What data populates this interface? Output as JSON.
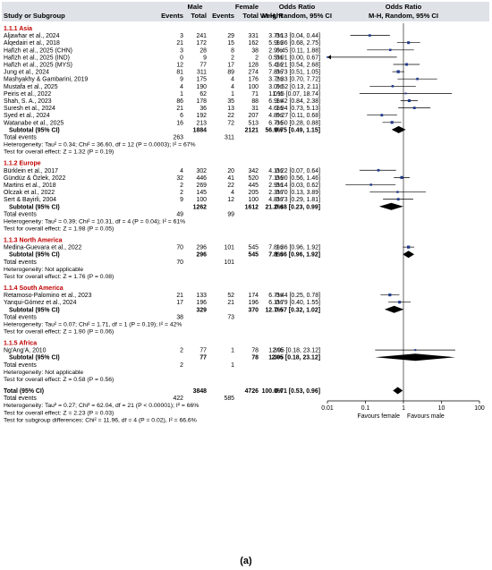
{
  "header": {
    "group_male": "Male",
    "group_female": "Female",
    "col_study": "Study or Subgroup",
    "col_events": "Events",
    "col_total": "Total",
    "col_weight": "Weight",
    "col_or_text": "Odds Ratio",
    "col_or_text_sub": "M-H, Random, 95% CI",
    "col_or_plot": "Odds Ratio",
    "col_or_plot_sub": "M-H, Random, 95% CI"
  },
  "axis": {
    "ticks": [
      "0.01",
      "0.1",
      "1",
      "10",
      "100"
    ],
    "favours_left": "Favours female",
    "favours_right": "Favours male"
  },
  "caption": "(a)",
  "chart_data": {
    "type": "forest",
    "xscale": "log",
    "xlim": [
      0.01,
      100
    ],
    "null_line": 1,
    "subgroups": [
      {
        "title": "1.1.1 Asia",
        "studies": [
          {
            "name": "Aljawhar et al., 2024",
            "me": "3",
            "mt": "241",
            "fe": "29",
            "ft": "331",
            "w": "3.7%",
            "ci": "0.13 [0.04, 0.44]",
            "or": 0.13,
            "lo": 0.04,
            "hi": 0.44,
            "wt": 3.7
          },
          {
            "name": "Alqedairi et al., 2018",
            "me": "21",
            "mt": "172",
            "fe": "15",
            "ft": "162",
            "w": "5.9%",
            "ci": "1.36 [0.68, 2.75]",
            "or": 1.36,
            "lo": 0.68,
            "hi": 2.75,
            "wt": 5.9
          },
          {
            "name": "Hafizh et al., 2025 (CHN)",
            "me": "3",
            "mt": "28",
            "fe": "8",
            "ft": "38",
            "w": "2.9%",
            "ci": "0.45 [0.11, 1.88]",
            "or": 0.45,
            "lo": 0.11,
            "hi": 1.88,
            "wt": 2.9
          },
          {
            "name": "Hafizh et al., 2025 (IND)",
            "me": "0",
            "mt": "9",
            "fe": "2",
            "ft": "2",
            "w": "0.5%",
            "ci": "0.01 [0.00, 0.67]",
            "or": 0.01,
            "lo": 0.001,
            "hi": 0.67,
            "wt": 0.5,
            "arrow_left": true
          },
          {
            "name": "Hafizh et al., 2025 (MYS)",
            "me": "12",
            "mt": "77",
            "fe": "17",
            "ft": "128",
            "w": "5.4%",
            "ci": "1.21 [0.54, 2.68]",
            "or": 1.21,
            "lo": 0.54,
            "hi": 2.68,
            "wt": 5.4
          },
          {
            "name": "Jung et al., 2024",
            "me": "81",
            "mt": "311",
            "fe": "89",
            "ft": "274",
            "w": "7.8%",
            "ci": "0.73 [0.51, 1.05]",
            "or": 0.73,
            "lo": 0.51,
            "hi": 1.05,
            "wt": 7.8
          },
          {
            "name": "Mashyakhy & Gambarini, 2019",
            "me": "9",
            "mt": "175",
            "fe": "4",
            "ft": "176",
            "w": "3.7%",
            "ci": "2.33 [0.70, 7.72]",
            "or": 2.33,
            "lo": 0.7,
            "hi": 7.72,
            "wt": 3.7
          },
          {
            "name": "Mustafa et al., 2025",
            "me": "4",
            "mt": "190",
            "fe": "4",
            "ft": "100",
            "w": "3.0%",
            "ci": "0.52 [0.13, 2.11]",
            "or": 0.52,
            "lo": 0.13,
            "hi": 2.11,
            "wt": 3.0
          },
          {
            "name": "Peiris et al., 2022",
            "me": "1",
            "mt": "62",
            "fe": "1",
            "ft": "71",
            "w": "1.0%",
            "ci": "1.15 [0.07, 18.74]",
            "or": 1.15,
            "lo": 0.07,
            "hi": 18.74,
            "wt": 1.0
          },
          {
            "name": "Shah, S. A., 2023",
            "me": "86",
            "mt": "178",
            "fe": "35",
            "ft": "88",
            "w": "6.9%",
            "ci": "1.42 [0.84, 2.38]",
            "or": 1.42,
            "lo": 0.84,
            "hi": 2.38,
            "wt": 6.9
          },
          {
            "name": "Suresh et al., 2024",
            "me": "21",
            "mt": "36",
            "fe": "13",
            "ft": "31",
            "w": "4.6%",
            "ci": "1.94 [0.73, 5.13]",
            "or": 1.94,
            "lo": 0.73,
            "hi": 5.13,
            "wt": 4.6
          },
          {
            "name": "Syed et al., 2024",
            "me": "6",
            "mt": "192",
            "fe": "22",
            "ft": "207",
            "w": "4.8%",
            "ci": "0.27 [0.11, 0.68]",
            "or": 0.27,
            "lo": 0.11,
            "hi": 0.68,
            "wt": 4.8
          },
          {
            "name": "Watanabe et al., 2025",
            "me": "16",
            "mt": "213",
            "fe": "72",
            "ft": "513",
            "w": "6.7%",
            "ci": "0.50 [0.28, 0.88]",
            "or": 0.5,
            "lo": 0.28,
            "hi": 0.88,
            "wt": 6.7
          }
        ],
        "subtotal": {
          "label": "Subtotal (95% CI)",
          "mt": "1884",
          "ft": "2121",
          "w": "56.9%",
          "ci": "0.75 [0.49, 1.15]",
          "or": 0.75,
          "lo": 0.49,
          "hi": 1.15
        },
        "total_events": {
          "label": "Total events",
          "me": "263",
          "fe": "311"
        },
        "heterogeneity": "Heterogeneity: Tau² = 0.34; Chi² = 36.60, df = 12 (P = 0.0003); I² = 67%",
        "overall_test": "Test for overall effect: Z = 1.32 (P = 0.19)"
      },
      {
        "title": "1.1.2 Europe",
        "studies": [
          {
            "name": "Bürklein et al., 2017",
            "me": "4",
            "mt": "302",
            "fe": "20",
            "ft": "342",
            "w": "4.1%",
            "ci": "0.22 [0.07, 0.64]",
            "or": 0.22,
            "lo": 0.07,
            "hi": 0.64,
            "wt": 4.1
          },
          {
            "name": "Gündüz & Özlek, 2022",
            "me": "32",
            "mt": "446",
            "fe": "41",
            "ft": "520",
            "w": "7.1%",
            "ci": "0.90 [0.56, 1.46]",
            "or": 0.9,
            "lo": 0.56,
            "hi": 1.46,
            "wt": 7.1
          },
          {
            "name": "Martins et al., 2018",
            "me": "2",
            "mt": "269",
            "fe": "22",
            "ft": "445",
            "w": "2.9%",
            "ci": "0.14 [0.03, 0.62]",
            "or": 0.14,
            "lo": 0.03,
            "hi": 0.62,
            "wt": 2.9
          },
          {
            "name": "Olczak et al., 2022",
            "me": "2",
            "mt": "145",
            "fe": "4",
            "ft": "205",
            "w": "2.3%",
            "ci": "0.70 [0.13, 3.89]",
            "or": 0.7,
            "lo": 0.13,
            "hi": 3.89,
            "wt": 2.3
          },
          {
            "name": "Sert & Bayirli, 2004",
            "me": "9",
            "mt": "100",
            "fe": "12",
            "ft": "100",
            "w": "4.8%",
            "ci": "0.73 [0.29, 1.81]",
            "or": 0.73,
            "lo": 0.29,
            "hi": 1.81,
            "wt": 4.8
          }
        ],
        "subtotal": {
          "label": "Subtotal (95% CI)",
          "mt": "1262",
          "ft": "1612",
          "w": "21.2%",
          "ci": "0.48 [0.23, 0.99]",
          "or": 0.48,
          "lo": 0.23,
          "hi": 0.99
        },
        "total_events": {
          "label": "Total events",
          "me": "49",
          "fe": "99"
        },
        "heterogeneity": "Heterogeneity: Tau² = 0.39; Chi² = 10.31, df = 4 (P = 0.04); I² = 61%",
        "overall_test": "Test for overall effect: Z = 1.98 (P = 0.05)"
      },
      {
        "title": "1.1.3 North America",
        "studies": [
          {
            "name": "Medina-Guevara et al., 2022",
            "me": "70",
            "mt": "296",
            "fe": "101",
            "ft": "545",
            "w": "7.8%",
            "ci": "1.36 [0.96, 1.92]",
            "or": 1.36,
            "lo": 0.96,
            "hi": 1.92,
            "wt": 7.8
          }
        ],
        "subtotal": {
          "label": "Subtotal (95% CI)",
          "mt": "296",
          "ft": "545",
          "w": "7.8%",
          "ci": "1.36 [0.96, 1.92]",
          "or": 1.36,
          "lo": 0.96,
          "hi": 1.92
        },
        "total_events": {
          "label": "Total events",
          "me": "70",
          "fe": "101"
        },
        "heterogeneity": "Heterogeneity: Not applicable",
        "overall_test": "Test for overall effect: Z = 1.76 (P = 0.08)"
      },
      {
        "title": "1.1.4 South America",
        "studies": [
          {
            "name": "Retamoso-Palomino et al., 2023",
            "me": "21",
            "mt": "133",
            "fe": "52",
            "ft": "174",
            "w": "6.7%",
            "ci": "0.44 [0.25, 0.78]",
            "or": 0.44,
            "lo": 0.25,
            "hi": 0.78,
            "wt": 6.7
          },
          {
            "name": "Yanqui-Gómez et al., 2024",
            "me": "17",
            "mt": "196",
            "fe": "21",
            "ft": "196",
            "w": "6.1%",
            "ci": "0.79 [0.40, 1.55]",
            "or": 0.79,
            "lo": 0.4,
            "hi": 1.55,
            "wt": 6.1
          }
        ],
        "subtotal": {
          "label": "Subtotal (95% CI)",
          "mt": "329",
          "ft": "370",
          "w": "12.7%",
          "ci": "0.57 [0.32, 1.02]",
          "or": 0.57,
          "lo": 0.32,
          "hi": 1.02
        },
        "total_events": {
          "label": "Total events",
          "me": "38",
          "fe": "73"
        },
        "heterogeneity": "Heterogeneity: Tau² = 0.07; Chi² = 1.71, df = 1 (P = 0.19); I² = 42%",
        "overall_test": "Test for overall effect: Z = 1.90 (P = 0.06)"
      },
      {
        "title": "1.1.5 Africa",
        "studies": [
          {
            "name": "Ng'Ang'A, 2010",
            "me": "2",
            "mt": "77",
            "fe": "1",
            "ft": "78",
            "w": "1.3%",
            "ci": "2.05 [0.18, 23.12]",
            "or": 2.05,
            "lo": 0.18,
            "hi": 23.12,
            "wt": 1.3
          }
        ],
        "subtotal": {
          "label": "Subtotal (95% CI)",
          "mt": "77",
          "ft": "78",
          "w": "1.3%",
          "ci": "2.05 [0.18, 23.12]",
          "or": 2.05,
          "lo": 0.18,
          "hi": 23.12
        },
        "total_events": {
          "label": "Total events",
          "me": "2",
          "fe": "1"
        },
        "heterogeneity": "Heterogeneity: Not applicable",
        "overall_test": "Test for overall effect: Z = 0.58 (P = 0.56)"
      }
    ],
    "overall": {
      "label": "Total (95% CI)",
      "mt": "3848",
      "ft": "4726",
      "w": "100.0%",
      "ci": "0.71 [0.53, 0.96]",
      "or": 0.71,
      "lo": 0.53,
      "hi": 0.96,
      "total_events": {
        "label": "Total events",
        "me": "422",
        "fe": "585"
      },
      "heterogeneity": "Heterogeneity: Tau² = 0.27; Chi² = 62.04, df = 21 (P < 0.00001); I² = 66%",
      "overall_test": "Test for overall effect: Z = 2.23 (P = 0.03)",
      "subgroup_test": "Test for subgroup differences: Chi² = 11.96, df = 4 (P = 0.02), I² = 66.6%"
    }
  }
}
